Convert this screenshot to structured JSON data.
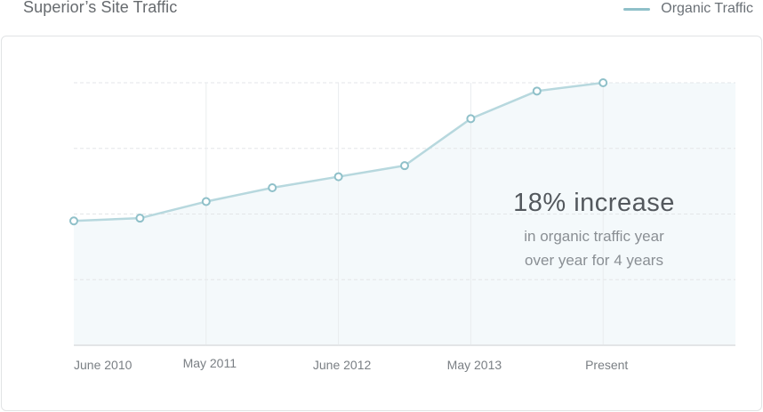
{
  "header": {
    "title": "Superior’s Site Traffic"
  },
  "legend": {
    "label": "Organic Traffic"
  },
  "colors": {
    "line": "#b7d8de",
    "marker_stroke": "#8fc0c9",
    "area_fill": "#f4f9fb",
    "legend_swatch": "#8fc0c9",
    "grid_h": "#e3e6e8",
    "grid_v": "#e9ecee",
    "axis": "#e3e5e7"
  },
  "annotation": {
    "headline": "18% increase",
    "line1": "in organic traffic year",
    "line2": "over year for 4 years"
  },
  "chart_data": {
    "type": "area",
    "series": [
      {
        "name": "Organic Traffic",
        "x": [
          0,
          1,
          2,
          3,
          4,
          5,
          6,
          7,
          8
        ],
        "values": [
          45,
          46,
          52,
          57,
          61,
          65,
          82,
          92,
          95
        ]
      }
    ],
    "tick_labels": [
      {
        "x": 0,
        "label": "June 2010"
      },
      {
        "x": 2,
        "label": "May 2011"
      },
      {
        "x": 4,
        "label": "June 2012"
      },
      {
        "x": 6,
        "label": "May 2013"
      },
      {
        "x": 8,
        "label": "Present"
      }
    ],
    "vertical_gridlines_at": [
      2,
      4,
      6,
      8
    ],
    "xlim": [
      0,
      10
    ],
    "ylim": [
      0,
      95
    ],
    "horizontal_grid": "dashed",
    "legend_position": "top-right",
    "xlabel": "",
    "ylabel": ""
  }
}
